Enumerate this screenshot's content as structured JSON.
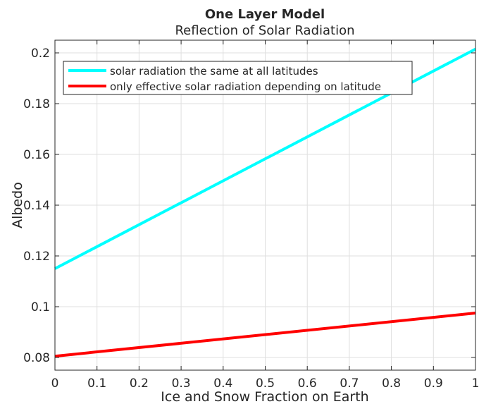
{
  "chart_data": {
    "type": "line",
    "title": "One Layer Model",
    "subtitle": "Reflection of Solar Radiation",
    "xlabel": "Ice and Snow Fraction on Earth",
    "ylabel": "Albedo",
    "xlim": [
      0,
      1
    ],
    "ylim": [
      0.075,
      0.205
    ],
    "grid": true,
    "legend_position": "top-left",
    "x_ticks": [
      0,
      0.1,
      0.2,
      0.3,
      0.4,
      0.5,
      0.6,
      0.7,
      0.8,
      0.9,
      1
    ],
    "x_tick_labels": [
      "0",
      "0.1",
      "0.2",
      "0.3",
      "0.4",
      "0.5",
      "0.6",
      "0.7",
      "0.8",
      "0.9",
      "1"
    ],
    "y_ticks": [
      0.08,
      0.1,
      0.12,
      0.14,
      0.16,
      0.18,
      0.2
    ],
    "y_tick_labels": [
      "0.08",
      "0.1",
      "0.12",
      "0.14",
      "0.16",
      "0.18",
      "0.2"
    ],
    "series": [
      {
        "name": "solar radiation the same at all latitudes",
        "color": "#00ffff",
        "x": [
          0,
          1
        ],
        "y": [
          0.115,
          0.2015
        ]
      },
      {
        "name": "only effective solar radiation depending on latitude",
        "color": "#ff0000",
        "x": [
          0,
          1
        ],
        "y": [
          0.0805,
          0.0975
        ]
      }
    ]
  }
}
